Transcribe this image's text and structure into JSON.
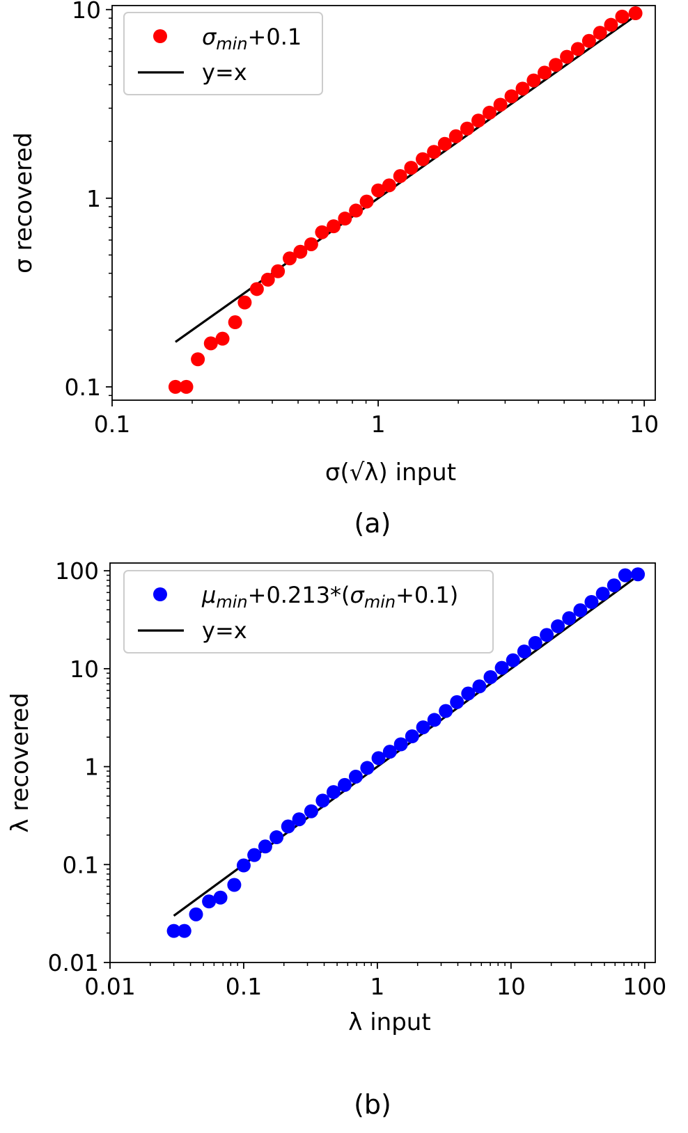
{
  "chart_data": [
    {
      "type": "scatter",
      "panel_label": "(a)",
      "xlabel": "σ(√λ) input",
      "ylabel": "σ recovered",
      "xscale": "log",
      "yscale": "log",
      "xlim": [
        0.1,
        11
      ],
      "ylim": [
        0.085,
        10.5
      ],
      "xticks": [
        0.1,
        1,
        10
      ],
      "xtick_labels": [
        "0.1",
        "1",
        "10"
      ],
      "yticks": [
        0.1,
        1,
        10
      ],
      "ytick_labels": [
        "0.1",
        "1",
        "10"
      ],
      "grid": false,
      "legend_position": "top-left",
      "series": [
        {
          "name": "σmin+0.1",
          "legend": {
            "main": "σ",
            "sub": "min",
            "rest": "+0.1"
          },
          "kind": "scatter",
          "color": "#ff0000",
          "x": [
            0.173,
            0.19,
            0.21,
            0.235,
            0.26,
            0.29,
            0.315,
            0.35,
            0.385,
            0.42,
            0.465,
            0.51,
            0.56,
            0.615,
            0.68,
            0.75,
            0.825,
            0.905,
            1.0,
            1.1,
            1.21,
            1.33,
            1.47,
            1.62,
            1.78,
            1.96,
            2.16,
            2.38,
            2.62,
            2.88,
            3.17,
            3.49,
            3.84,
            4.22,
            4.65,
            5.12,
            5.63,
            6.2,
            6.82,
            7.5,
            8.26,
            9.27
          ],
          "y": [
            0.1,
            0.1,
            0.14,
            0.17,
            0.18,
            0.22,
            0.28,
            0.33,
            0.37,
            0.41,
            0.48,
            0.52,
            0.57,
            0.66,
            0.71,
            0.78,
            0.86,
            0.96,
            1.1,
            1.17,
            1.31,
            1.45,
            1.61,
            1.76,
            1.94,
            2.13,
            2.34,
            2.58,
            2.84,
            3.13,
            3.47,
            3.81,
            4.21,
            4.63,
            5.09,
            5.62,
            6.18,
            6.82,
            7.53,
            8.3,
            9.18,
            9.56
          ]
        },
        {
          "name": "y=x",
          "kind": "line",
          "color": "#000000",
          "x": [
            0.173,
            9.27
          ],
          "y": [
            0.173,
            9.27
          ]
        }
      ]
    },
    {
      "type": "scatter",
      "panel_label": "(b)",
      "xlabel": "λ input",
      "ylabel": "λ recovered",
      "xscale": "log",
      "yscale": "log",
      "xlim": [
        0.01,
        120
      ],
      "ylim": [
        0.01,
        120
      ],
      "xticks": [
        0.01,
        0.1,
        1,
        10,
        100
      ],
      "xtick_labels": [
        "0.01",
        "0.1",
        "1",
        "10",
        "100"
      ],
      "yticks": [
        0.01,
        0.1,
        1,
        10,
        100
      ],
      "ytick_labels": [
        "0.01",
        "0.1",
        "1",
        "10",
        "100"
      ],
      "grid": false,
      "legend_position": "top-left",
      "series": [
        {
          "name": "μmin+0.213*(σmin+0.1)",
          "legend": {
            "main": "μ",
            "sub": "min",
            "rest": "+0.213*(",
            "main2": "σ",
            "sub2": "min",
            "rest2": "+0.1)"
          },
          "kind": "scatter",
          "color": "#0000ff",
          "x": [
            0.03,
            0.036,
            0.044,
            0.055,
            0.067,
            0.085,
            0.1,
            0.12,
            0.145,
            0.176,
            0.215,
            0.26,
            0.32,
            0.39,
            0.47,
            0.57,
            0.69,
            0.84,
            1.02,
            1.24,
            1.5,
            1.82,
            2.2,
            2.67,
            3.25,
            3.94,
            4.78,
            5.8,
            7.03,
            8.53,
            10.35,
            12.56,
            15.2,
            18.5,
            22.4,
            27.2,
            33.0,
            40.0,
            48.6,
            59.0,
            71.5,
            89.0
          ],
          "y": [
            0.021,
            0.021,
            0.031,
            0.042,
            0.046,
            0.062,
            0.098,
            0.125,
            0.153,
            0.19,
            0.245,
            0.29,
            0.35,
            0.45,
            0.55,
            0.65,
            0.79,
            0.97,
            1.22,
            1.42,
            1.69,
            2.04,
            2.52,
            3.0,
            3.7,
            4.56,
            5.58,
            6.6,
            8.2,
            10.2,
            12.2,
            15.0,
            18.3,
            22.1,
            27.1,
            32.8,
            39.5,
            48.0,
            58.3,
            71.0,
            90.0,
            92.0
          ]
        },
        {
          "name": "y=x",
          "kind": "line",
          "color": "#000000",
          "x": [
            0.03,
            89.0
          ],
          "y": [
            0.03,
            89.0
          ]
        }
      ]
    }
  ]
}
